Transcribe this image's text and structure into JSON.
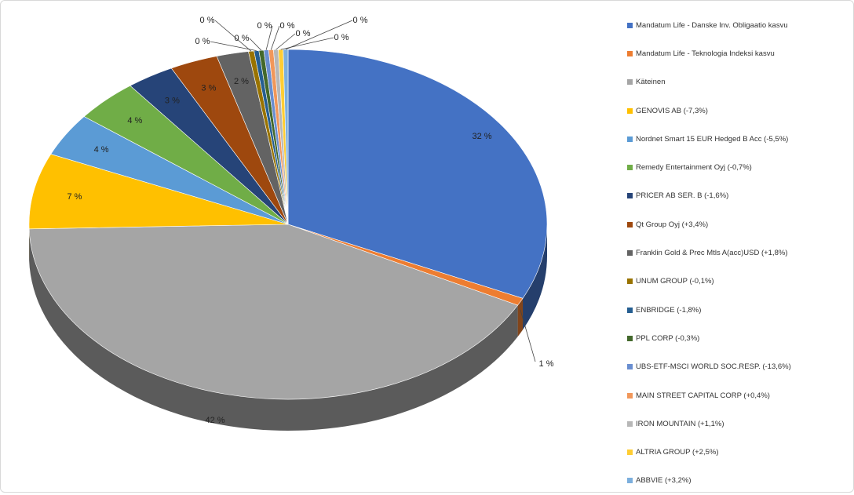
{
  "chart_data": {
    "type": "pie",
    "style": "3d",
    "legend_position": "right",
    "slices": [
      {
        "name": "Mandatum Life - Danske Inv. Obligaatio kasvu",
        "value": 32,
        "label": "32 %",
        "color": "#4472C4"
      },
      {
        "name": "Mandatum Life - Teknologia Indeksi kasvu",
        "value": 0.7,
        "label": "1 %",
        "color": "#ED7D31"
      },
      {
        "name": "Käteinen",
        "value": 42,
        "label": "42 %",
        "color": "#A5A5A5"
      },
      {
        "name": "GENOVIS AB (-7,3%)",
        "value": 7,
        "label": "7 %",
        "color": "#FFC000"
      },
      {
        "name": "Nordnet Smart 15 EUR Hedged B Acc (-5,5%)",
        "value": 4,
        "label": "4 %",
        "color": "#5B9BD5"
      },
      {
        "name": "Remedy Entertainment Oyj (-0,7%)",
        "value": 4,
        "label": "4 %",
        "color": "#70AD47"
      },
      {
        "name": "PRICER AB SER. B (-1,6%)",
        "value": 3,
        "label": "3 %",
        "color": "#264478"
      },
      {
        "name": "Qt Group Oyj (+3,4%)",
        "value": 3,
        "label": "3 %",
        "color": "#9E480E"
      },
      {
        "name": "Franklin Gold & Prec Mtls A(acc)USD (+1,8%)",
        "value": 2,
        "label": "2 %",
        "color": "#636363"
      },
      {
        "name": "UNUM GROUP (-0,1%)",
        "value": 0.35,
        "label": "0 %",
        "color": "#997300"
      },
      {
        "name": "ENBRIDGE (-1,8%)",
        "value": 0.3,
        "label": "0 %",
        "color": "#255E91"
      },
      {
        "name": "PPL CORP (-0,3%)",
        "value": 0.3,
        "label": "0 %",
        "color": "#43682B"
      },
      {
        "name": "UBS-ETF-MSCI WORLD SOC.RESP. (-13,6%)",
        "value": 0.3,
        "label": "0 %",
        "color": "#698ED0"
      },
      {
        "name": "MAIN STREET CAPITAL CORP (+0,4%)",
        "value": 0.3,
        "label": "0 %",
        "color": "#F1975A"
      },
      {
        "name": "IRON MOUNTAIN (+1,1%)",
        "value": 0.3,
        "label": "0 %",
        "color": "#B7B7B7"
      },
      {
        "name": "ALTRIA GROUP (+2,5%)",
        "value": 0.3,
        "label": "0 %",
        "color": "#FFCD33"
      },
      {
        "name": "ABBVIE (+3,2%)",
        "value": 0.3,
        "label": "0 %",
        "color": "#7CAFDD"
      }
    ]
  }
}
